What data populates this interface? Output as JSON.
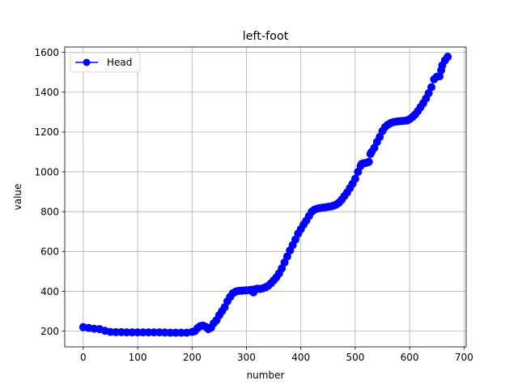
{
  "chart_data": {
    "type": "line",
    "title": "left-foot",
    "xlabel": "number",
    "ylabel": "value",
    "xlim": [
      -34,
      704
    ],
    "ylim": [
      121,
      1627
    ],
    "xticks": [
      0,
      100,
      200,
      300,
      400,
      500,
      600,
      700
    ],
    "yticks": [
      200,
      400,
      600,
      800,
      1000,
      1200,
      1400,
      1600
    ],
    "grid": true,
    "legend": {
      "position": "top-left",
      "entries": [
        "Head"
      ]
    },
    "series": [
      {
        "name": "Head",
        "color": "#0000ff",
        "marker": "circle",
        "x": [
          0,
          10,
          20,
          30,
          40,
          50,
          60,
          70,
          80,
          90,
          100,
          110,
          120,
          130,
          140,
          150,
          160,
          170,
          180,
          190,
          200,
          205,
          210,
          215,
          220,
          225,
          230,
          235,
          240,
          245,
          250,
          255,
          260,
          265,
          270,
          275,
          280,
          285,
          290,
          295,
          300,
          305,
          310,
          313,
          316,
          320,
          325,
          330,
          335,
          340,
          345,
          350,
          355,
          360,
          365,
          370,
          375,
          380,
          385,
          390,
          395,
          400,
          405,
          410,
          415,
          420,
          425,
          430,
          435,
          440,
          445,
          450,
          455,
          460,
          465,
          470,
          475,
          480,
          485,
          490,
          495,
          500,
          505,
          510,
          512,
          515,
          520,
          525,
          528,
          530,
          535,
          540,
          545,
          550,
          555,
          560,
          565,
          570,
          575,
          580,
          585,
          590,
          595,
          600,
          605,
          610,
          615,
          620,
          625,
          630,
          635,
          640,
          645,
          650,
          655,
          658,
          660,
          665,
          670
        ],
        "values": [
          220,
          216,
          212,
          210,
          202,
          196,
          195,
          195,
          194,
          194,
          194,
          194,
          194,
          194,
          194,
          193,
          192,
          192,
          192,
          192,
          196,
          200,
          215,
          225,
          228,
          222,
          210,
          218,
          240,
          255,
          280,
          300,
          320,
          350,
          372,
          390,
          398,
          402,
          403,
          404,
          405,
          406,
          408,
          395,
          410,
          413,
          412,
          415,
          420,
          428,
          440,
          455,
          470,
          490,
          515,
          545,
          575,
          605,
          632,
          660,
          690,
          712,
          735,
          755,
          778,
          800,
          810,
          815,
          818,
          820,
          822,
          824,
          826,
          830,
          836,
          845,
          860,
          878,
          896,
          918,
          940,
          965,
          1000,
          1030,
          1040,
          1043,
          1045,
          1050,
          1090,
          1100,
          1120,
          1150,
          1175,
          1205,
          1225,
          1237,
          1245,
          1250,
          1252,
          1254,
          1255,
          1256,
          1258,
          1265,
          1275,
          1288,
          1305,
          1325,
          1345,
          1368,
          1395,
          1425,
          1465,
          1478,
          1480,
          1510,
          1535,
          1560,
          1578
        ]
      }
    ]
  }
}
